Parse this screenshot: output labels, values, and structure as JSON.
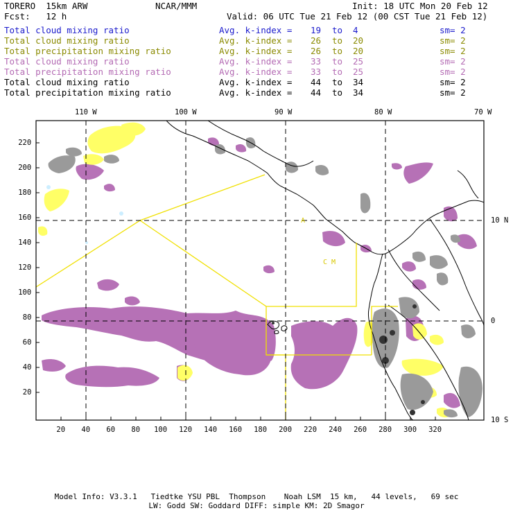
{
  "header": {
    "model": "TORERO  15km ARW",
    "org": "NCAR/MMM",
    "init": "Init: 18 UTC Mon 20 Feb 12",
    "fcst": "Fcst:   12 h",
    "valid": "Valid: 06 UTC Tue 21 Feb 12 (00 CST Tue 21 Feb 12)"
  },
  "legend": [
    {
      "field": "Total cloud mixing ratio",
      "kindex": "Avg. k-index =",
      "from": "19",
      "to_word": "to",
      "to": "4",
      "sm": "sm= 2",
      "color": "#1a1acc"
    },
    {
      "field": "Total cloud mixing ratio",
      "kindex": "Avg. k-index =",
      "from": "26",
      "to_word": "to",
      "to": "20",
      "sm": "sm= 2",
      "color": "#8a8a00"
    },
    {
      "field": "Total precipitation mixing ratio",
      "kindex": "Avg. k-index =",
      "from": "26",
      "to_word": "to",
      "to": "20",
      "sm": "sm= 2",
      "color": "#8a8a00"
    },
    {
      "field": "Total cloud mixing ratio",
      "kindex": "Avg. k-index =",
      "from": "33",
      "to_word": "to",
      "to": "25",
      "sm": "sm= 2",
      "color": "#b36ab3"
    },
    {
      "field": "Total precipitation mixing ratio",
      "kindex": "Avg. k-index =",
      "from": "33",
      "to_word": "to",
      "to": "25",
      "sm": "sm= 2",
      "color": "#b36ab3"
    },
    {
      "field": "Total cloud mixing ratio",
      "kindex": "Avg. k-index =",
      "from": "44",
      "to_word": "to",
      "to": "34",
      "sm": "sm= 2",
      "color": "#000000"
    },
    {
      "field": "Total precipitation mixing ratio",
      "kindex": "Avg. k-index =",
      "from": "44",
      "to_word": "to",
      "to": "34",
      "sm": "sm= 2",
      "color": "#000000"
    }
  ],
  "axes": {
    "lon_labels": [
      "110 W",
      "100 W",
      "90 W",
      "80 W",
      "70 W"
    ],
    "lat_labels": [
      "10 N",
      "0",
      "10 S"
    ],
    "x_ticks": [
      "20",
      "40",
      "60",
      "80",
      "100",
      "120",
      "140",
      "160",
      "180",
      "200",
      "220",
      "240",
      "260",
      "280",
      "300",
      "320"
    ],
    "y_ticks": [
      "20",
      "40",
      "60",
      "80",
      "100",
      "120",
      "140",
      "160",
      "180",
      "200",
      "220"
    ]
  },
  "map_labels": {
    "small_a": "A",
    "small_cm": "C M"
  },
  "colors": {
    "purple": "#b36ab3",
    "yellow": "#ffff66",
    "yellow_line": "#f0e000",
    "gray": "#9a9a9a",
    "dark": "#333333",
    "cyan": "#cceeff"
  },
  "footer": {
    "line1": "Model Info: V3.3.1   Tiedtke YSU PBL  Thompson    Noah LSM  15 km,   44 levels,   69 sec",
    "line2": "LW: Godd SW: Goddard DIFF: simple KM: 2D Smagor"
  }
}
